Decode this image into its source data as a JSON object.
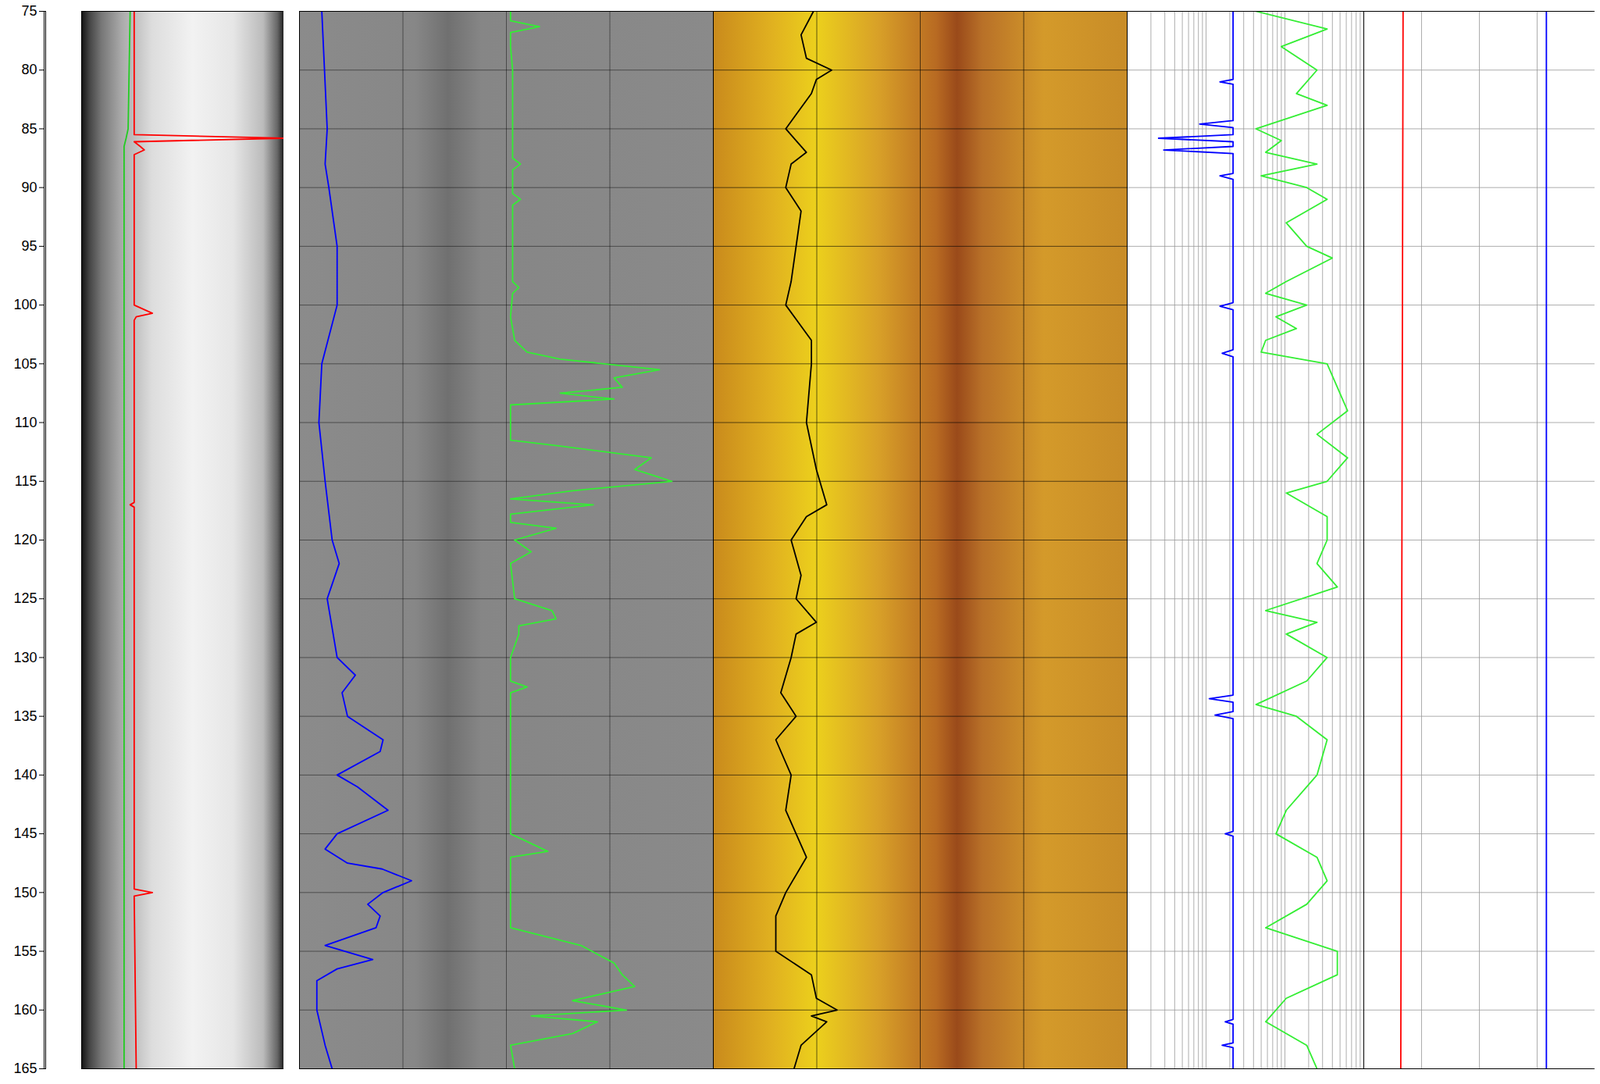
{
  "chart_data": {
    "type": "well_log",
    "ylim": [
      75,
      165
    ],
    "yticks": [
      75,
      80,
      85,
      90,
      95,
      100,
      105,
      110,
      115,
      120,
      125,
      130,
      135,
      140,
      145,
      150,
      155,
      160,
      165
    ],
    "tick_labels": "y",
    "tracks": [
      {
        "xlim": [
          0,
          100
        ],
        "grid": false,
        "series": [
          {
            "color": "#22cc22",
            "type": "line",
            "depth": [
              75,
              80,
              85,
              85.8,
              86.5,
              90,
              100,
              120,
              140,
              150,
              165
            ],
            "values": [
              24,
              23.5,
              23,
              22,
              21,
              21,
              21,
              21,
              21,
              21,
              21
            ]
          },
          {
            "color": "#ff0000",
            "type": "line",
            "depth": [
              75,
              85,
              85.5,
              85.8,
              86.1,
              86.5,
              86.8,
              87.2,
              100,
              100.7,
              101,
              101.3,
              116.8,
              117,
              117.2,
              149.7,
              150,
              150.3,
              165
            ],
            "values": [
              26,
              26,
              26,
              100,
              26,
              29,
              31,
              26,
              26,
              35,
              27,
              26,
              26,
              24,
              26,
              26,
              35,
              26,
              27
            ]
          }
        ]
      },
      {
        "xlim": [
          0,
          100
        ],
        "xticks": [
          0,
          25,
          50,
          75,
          100
        ],
        "grid": true,
        "series": [
          {
            "color": "#0000ff",
            "type": "line",
            "depth": [
              75,
              85,
              88,
              90,
              95,
              100,
              105,
              110,
              115,
              120,
              122,
              125,
              130,
              131.5,
              133,
              135,
              137,
              138,
              140,
              141,
              142,
              143,
              145,
              146.3,
              147.5,
              148,
              149,
              150,
              151,
              152,
              153,
              154.5,
              155.7,
              156.5,
              157.5,
              160,
              163,
              165
            ],
            "values": [
              5.4,
              6.7,
              6.2,
              7.1,
              9.1,
              9.1,
              5.4,
              4.7,
              6.2,
              7.9,
              9.6,
              6.7,
              9.1,
              13.5,
              10.3,
              11.6,
              20.2,
              19.5,
              9.1,
              14,
              17.7,
              21.4,
              9.1,
              6.2,
              11.6,
              20,
              27.1,
              20.2,
              16.5,
              19.5,
              18.5,
              6.2,
              17.7,
              9.1,
              4.2,
              4.2,
              6.2,
              7.9
            ]
          },
          {
            "color": "#33ee33",
            "type": "line",
            "depth": [
              75,
              75.8,
              76.3,
              76.8,
              78,
              80,
              87.5,
              88,
              88.5,
              90.5,
              91,
              91.5,
              98,
              98.5,
              99,
              101,
              103,
              104,
              104.6,
              105.5,
              106.2,
              107,
              107.5,
              108,
              108.5,
              110,
              111.5,
              112,
              113,
              114,
              115,
              115.8,
              116.5,
              117,
              117.8,
              118.5,
              119,
              120,
              121,
              122,
              125,
              126,
              126.7,
              127.3,
              128,
              130,
              132,
              132.5,
              133,
              145,
              146.5,
              147,
              153,
              154.5,
              156,
              157,
              158,
              159.2,
              160,
              160.5,
              161,
              162,
              163,
              165
            ],
            "values": [
              51,
              51,
              58,
              51,
              51,
              51.5,
              51.5,
              53.4,
              51.5,
              51.5,
              53.4,
              51.5,
              51.5,
              53,
              51.5,
              51,
              52,
              55,
              63,
              87,
              76,
              78,
              63,
              76,
              51,
              51,
              51,
              63,
              85,
              81,
              90,
              66,
              51,
              71,
              51,
              51,
              62,
              52,
              56,
              51,
              52,
              61,
              62,
              53,
              53,
              51,
              51,
              55,
              51,
              51,
              60,
              51,
              51,
              68,
              76,
              78,
              81,
              66,
              79,
              56,
              72,
              66,
              51,
              52
            ]
          }
        ]
      },
      {
        "xlim": [
          0,
          100
        ],
        "xticks": [
          0,
          25,
          50,
          75,
          100
        ],
        "grid": true,
        "series": [
          {
            "color": "#000000",
            "type": "line",
            "depth": [
              75,
              77,
              79,
              80,
              80.8,
              82,
              85,
              87,
              88,
              90,
              92,
              95,
              98,
              100,
              103,
              105,
              110,
              114,
              117,
              118,
              120,
              123,
              125,
              127,
              128,
              130,
              133,
              135,
              137,
              140,
              143,
              145,
              147,
              150,
              152,
              155,
              157,
              159,
              160,
              160.5,
              161,
              163,
              165
            ],
            "values": [
              24.2,
              21.2,
              22.5,
              28.6,
              24.9,
              23.7,
              17.5,
              22.5,
              18.8,
              17.5,
              21.2,
              20,
              18.8,
              17.5,
              23.7,
              23.7,
              22.5,
              24.9,
              27.4,
              22.5,
              18.8,
              21.2,
              20,
              24.9,
              20,
              18.8,
              16.3,
              20,
              15.1,
              18.8,
              17.5,
              20,
              22.5,
              17.5,
              15.1,
              15.1,
              23.7,
              24.9,
              29.9,
              23.7,
              27.4,
              21.2,
              19.5
            ]
          }
        ]
      },
      {
        "xlim": [
          1,
          1000
        ],
        "log": "x",
        "xticks": [
          1,
          2,
          3,
          4,
          5,
          6,
          7,
          8,
          9,
          10,
          20,
          30,
          40,
          50,
          60,
          70,
          80,
          90,
          100,
          200,
          300,
          400,
          500,
          600,
          700,
          800,
          900,
          1000
        ],
        "grid": true,
        "series": [
          {
            "color": "#0000ff",
            "type": "line",
            "depth": [
              75,
              80.8,
              81,
              81.2,
              84.3,
              84.6,
              84.9,
              85.5,
              85.8,
              86.1,
              86.5,
              86.8,
              87.1,
              88.8,
              89,
              89.3,
              99.8,
              100.1,
              100.4,
              103.8,
              104.1,
              104.4,
              133.2,
              133.5,
              133.8,
              134.6,
              134.9,
              135.2,
              144.8,
              145,
              145.2,
              160.8,
              161,
              161.2,
              162.8,
              163,
              163.2,
              165
            ],
            "values": [
              22,
              22,
              15,
              22,
              22,
              8.3,
              22,
              22,
              2.5,
              22,
              22,
              2.9,
              22,
              22,
              15,
              22,
              22,
              15,
              22,
              22,
              16,
              22,
              22,
              11,
              22,
              22,
              13,
              22,
              22,
              17.5,
              22,
              22,
              17.5,
              22,
              22,
              16,
              22,
              22
            ]
          },
          {
            "color": "#33ee33",
            "type": "line",
            "depth": [
              75,
              76.5,
              78,
              80,
              82,
              83,
              85,
              86,
              87,
              88,
              89,
              90,
              91,
              93,
              95,
              96,
              98,
              99,
              100,
              101,
              102,
              103,
              104,
              105,
              107,
              109,
              111,
              113,
              115,
              116,
              118,
              120,
              122,
              124,
              126,
              127,
              128,
              130,
              132,
              134,
              135,
              137,
              140,
              143,
              145,
              147,
              149,
              151,
              153,
              155,
              157,
              159,
              161,
              163,
              165
            ],
            "values": [
              43,
              343,
              90,
              255,
              140,
              343,
              43,
              90,
              57,
              255,
              50,
              189,
              343,
              104,
              189,
              398,
              104,
              57,
              189,
              77,
              140,
              57,
              50,
              343,
              462,
              623,
              255,
              623,
              343,
              104,
              343,
              343,
              255,
              462,
              57,
              255,
              104,
              343,
              189,
              43,
              140,
              343,
              255,
              104,
              77,
              255,
              343,
              189,
              57,
              462,
              462,
              104,
              57,
              189,
              255
            ]
          }
        ]
      },
      {
        "xlim": [
          0,
          100
        ],
        "xticks": [
          0,
          25,
          50,
          75,
          100
        ],
        "grid": true,
        "series": [
          {
            "color": "#ff0000",
            "type": "line",
            "depth": [
              75,
              165
            ],
            "values": [
              17,
              16
            ]
          },
          {
            "color": "#0000ff",
            "type": "line",
            "depth": [
              75,
              165
            ],
            "values": [
              79,
              79
            ]
          }
        ]
      }
    ]
  }
}
